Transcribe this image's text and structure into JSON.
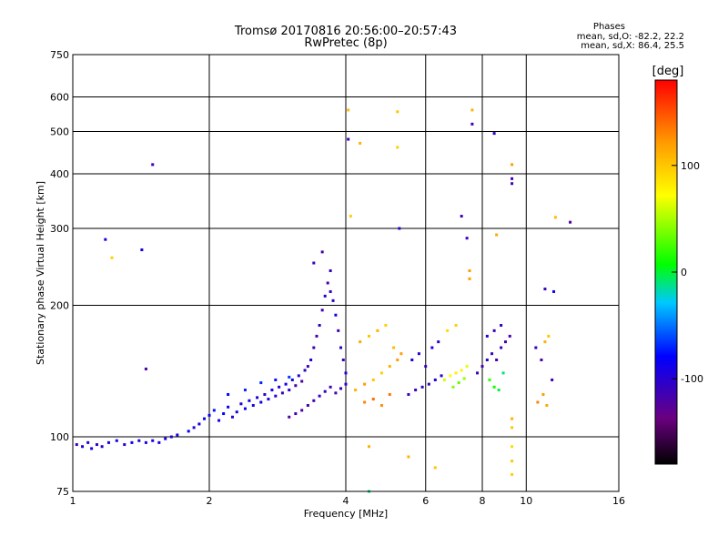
{
  "title": {
    "line1": "Tromsø 20170816 20:56:00–20:57:43",
    "line2": "RwPretec (8p)"
  },
  "phases": {
    "heading": "Phases",
    "o_line": "mean, sd,O:  -82.2, 22.2",
    "x_line": "mean, sd,X:  86.4, 25.5"
  },
  "colorbar": {
    "label": "[deg]",
    "ticks": [
      "100",
      "0",
      "-100"
    ],
    "tick_values": [
      100,
      0,
      -100
    ],
    "range": [
      -180,
      180
    ]
  },
  "chart_data": {
    "type": "scatter",
    "xlabel": "Frequency [MHz]",
    "ylabel": "Stationary phase Virtual Height [km]",
    "xscale": "log",
    "yscale": "log",
    "xlim": [
      1,
      16
    ],
    "ylim": [
      75,
      750
    ],
    "xticks": [
      1,
      2,
      4,
      6,
      8,
      10,
      16
    ],
    "xtick_labels": [
      "1",
      "2",
      "4",
      "6",
      "8",
      "10",
      "16"
    ],
    "yticks": [
      75,
      100,
      200,
      300,
      400,
      500,
      600,
      750
    ],
    "ytick_labels": [
      "75",
      "100",
      "200",
      "300",
      "400",
      "500",
      "600",
      "750"
    ],
    "grid": true,
    "points": [
      [
        1.02,
        96,
        -110
      ],
      [
        1.05,
        95,
        -95
      ],
      [
        1.08,
        97,
        -100
      ],
      [
        1.1,
        94,
        -90
      ],
      [
        1.13,
        96,
        -105
      ],
      [
        1.16,
        95,
        -100
      ],
      [
        1.2,
        97,
        -95
      ],
      [
        1.25,
        98,
        -90
      ],
      [
        1.3,
        96,
        -100
      ],
      [
        1.35,
        97,
        -85
      ],
      [
        1.4,
        98,
        -95
      ],
      [
        1.45,
        97,
        -90
      ],
      [
        1.5,
        98,
        -88
      ],
      [
        1.55,
        97,
        -92
      ],
      [
        1.6,
        99,
        -85
      ],
      [
        1.65,
        100,
        -95
      ],
      [
        1.7,
        101,
        -90
      ],
      [
        1.18,
        283,
        -95
      ],
      [
        1.22,
        257,
        95
      ],
      [
        1.42,
        268,
        -90
      ],
      [
        1.5,
        420,
        -110
      ],
      [
        1.45,
        143,
        -120
      ],
      [
        1.8,
        103,
        -85
      ],
      [
        1.85,
        105,
        -95
      ],
      [
        1.9,
        107,
        -90
      ],
      [
        1.95,
        110,
        -80
      ],
      [
        2.0,
        112,
        -85
      ],
      [
        2.05,
        115,
        -75
      ],
      [
        2.1,
        109,
        -95
      ],
      [
        2.15,
        113,
        -80
      ],
      [
        2.2,
        117,
        -85
      ],
      [
        2.25,
        111,
        -100
      ],
      [
        2.3,
        114,
        -90
      ],
      [
        2.35,
        119,
        -95
      ],
      [
        2.4,
        116,
        -85
      ],
      [
        2.45,
        121,
        -90
      ],
      [
        2.5,
        118,
        -95
      ],
      [
        2.55,
        123,
        -100
      ],
      [
        2.6,
        120,
        -85
      ],
      [
        2.65,
        125,
        -105
      ],
      [
        2.7,
        122,
        -95
      ],
      [
        2.75,
        128,
        -90
      ],
      [
        2.8,
        124,
        -100
      ],
      [
        2.85,
        130,
        -95
      ],
      [
        2.9,
        126,
        -110
      ],
      [
        2.95,
        132,
        -85
      ],
      [
        3.0,
        128,
        -105
      ],
      [
        3.05,
        135,
        -95
      ],
      [
        3.1,
        131,
        -115
      ],
      [
        3.15,
        138,
        -100
      ],
      [
        3.2,
        134,
        -120
      ],
      [
        3.25,
        142,
        -105
      ],
      [
        3.3,
        145,
        -115
      ],
      [
        3.35,
        150,
        -100
      ],
      [
        3.4,
        160,
        -110
      ],
      [
        3.45,
        170,
        -120
      ],
      [
        3.5,
        180,
        -105
      ],
      [
        3.55,
        195,
        -115
      ],
      [
        3.6,
        210,
        -100
      ],
      [
        3.65,
        225,
        -120
      ],
      [
        3.7,
        240,
        -110
      ],
      [
        3.75,
        205,
        -100
      ],
      [
        3.8,
        190,
        -90
      ],
      [
        3.85,
        175,
        -115
      ],
      [
        3.9,
        160,
        -105
      ],
      [
        3.95,
        150,
        -110
      ],
      [
        4.0,
        140,
        -95
      ],
      [
        3.4,
        250,
        -115
      ],
      [
        3.55,
        265,
        -120
      ],
      [
        3.7,
        215,
        -110
      ],
      [
        3.3,
        118,
        -120
      ],
      [
        3.4,
        121,
        -115
      ],
      [
        3.5,
        124,
        -110
      ],
      [
        3.6,
        127,
        -105
      ],
      [
        3.7,
        130,
        -115
      ],
      [
        3.8,
        126,
        -120
      ],
      [
        3.9,
        129,
        -110
      ],
      [
        4.0,
        132,
        -105
      ],
      [
        3.2,
        115,
        -120
      ],
      [
        3.1,
        113,
        -115
      ],
      [
        3.0,
        111,
        -125
      ],
      [
        2.6,
        133,
        -70
      ],
      [
        2.8,
        135,
        -75
      ],
      [
        3.0,
        137,
        -65
      ],
      [
        2.4,
        128,
        -70
      ],
      [
        2.2,
        125,
        -80
      ],
      [
        4.05,
        560,
        105
      ],
      [
        4.05,
        480,
        -110
      ],
      [
        4.1,
        320,
        95
      ],
      [
        4.3,
        470,
        110
      ],
      [
        5.2,
        555,
        100
      ],
      [
        5.2,
        460,
        95
      ],
      [
        5.25,
        300,
        -100
      ],
      [
        7.6,
        560,
        110
      ],
      [
        7.6,
        520,
        -110
      ],
      [
        8.5,
        495,
        -105
      ],
      [
        9.3,
        420,
        120
      ],
      [
        9.3,
        390,
        -110
      ],
      [
        9.3,
        380,
        -115
      ],
      [
        8.6,
        290,
        115
      ],
      [
        7.5,
        240,
        120
      ],
      [
        7.5,
        230,
        120
      ],
      [
        7.2,
        320,
        -115
      ],
      [
        7.4,
        285,
        -110
      ],
      [
        11.6,
        318,
        105
      ],
      [
        12.5,
        310,
        -120
      ],
      [
        11.0,
        218,
        -110
      ],
      [
        11.5,
        215,
        -90
      ],
      [
        4.2,
        128,
        110
      ],
      [
        4.4,
        132,
        120
      ],
      [
        4.6,
        135,
        100
      ],
      [
        4.8,
        140,
        95
      ],
      [
        5.0,
        145,
        110
      ],
      [
        5.2,
        150,
        120
      ],
      [
        4.3,
        165,
        115
      ],
      [
        4.5,
        170,
        100
      ],
      [
        4.7,
        175,
        110
      ],
      [
        4.9,
        180,
        95
      ],
      [
        5.1,
        160,
        105
      ],
      [
        5.3,
        155,
        120
      ],
      [
        4.4,
        120,
        130
      ],
      [
        4.6,
        122,
        140
      ],
      [
        4.8,
        118,
        125
      ],
      [
        5.0,
        125,
        135
      ],
      [
        5.5,
        125,
        -110
      ],
      [
        5.7,
        128,
        -115
      ],
      [
        5.9,
        130,
        -105
      ],
      [
        6.1,
        132,
        -110
      ],
      [
        6.3,
        135,
        -100
      ],
      [
        6.5,
        138,
        -105
      ],
      [
        5.6,
        150,
        -95
      ],
      [
        5.8,
        155,
        -100
      ],
      [
        6.0,
        145,
        -110
      ],
      [
        6.2,
        160,
        -90
      ],
      [
        6.4,
        165,
        -100
      ],
      [
        6.6,
        135,
        60
      ],
      [
        6.8,
        138,
        70
      ],
      [
        7.0,
        140,
        80
      ],
      [
        7.2,
        142,
        75
      ],
      [
        7.4,
        145,
        65
      ],
      [
        6.7,
        175,
        90
      ],
      [
        7.0,
        180,
        95
      ],
      [
        6.9,
        130,
        40
      ],
      [
        7.1,
        133,
        30
      ],
      [
        7.3,
        136,
        45
      ],
      [
        7.8,
        140,
        -110
      ],
      [
        8.0,
        145,
        -115
      ],
      [
        8.2,
        150,
        -105
      ],
      [
        8.4,
        155,
        -110
      ],
      [
        8.6,
        150,
        -120
      ],
      [
        8.8,
        160,
        -115
      ],
      [
        8.2,
        170,
        -100
      ],
      [
        8.5,
        175,
        -110
      ],
      [
        8.8,
        180,
        -105
      ],
      [
        9.0,
        165,
        -115
      ],
      [
        9.2,
        170,
        -120
      ],
      [
        8.3,
        135,
        20
      ],
      [
        8.5,
        130,
        10
      ],
      [
        8.7,
        128,
        0
      ],
      [
        8.9,
        140,
        -10
      ],
      [
        9.3,
        110,
        110
      ],
      [
        9.3,
        105,
        100
      ],
      [
        9.3,
        95,
        90
      ],
      [
        9.3,
        88,
        100
      ],
      [
        9.3,
        82,
        95
      ],
      [
        10.5,
        160,
        -110
      ],
      [
        10.8,
        150,
        -120
      ],
      [
        11.0,
        165,
        110
      ],
      [
        11.2,
        170,
        100
      ],
      [
        11.4,
        135,
        -115
      ],
      [
        10.6,
        120,
        130
      ],
      [
        10.9,
        125,
        120
      ],
      [
        11.1,
        118,
        115
      ],
      [
        4.5,
        75,
        -10
      ],
      [
        6.3,
        85,
        100
      ],
      [
        5.5,
        90,
        110
      ],
      [
        4.5,
        95,
        110
      ]
    ]
  }
}
